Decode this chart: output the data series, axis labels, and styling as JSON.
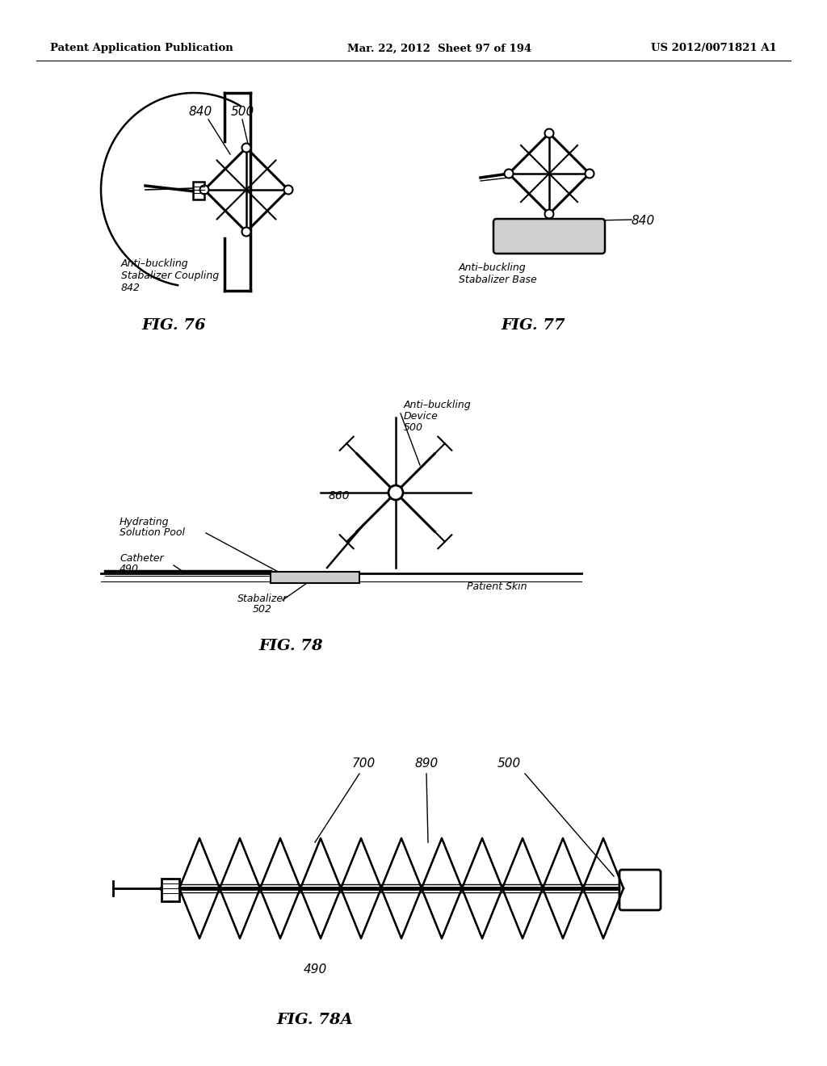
{
  "background_color": "#ffffff",
  "header_left": "Patent Application Publication",
  "header_mid": "Mar. 22, 2012  Sheet 97 of 194",
  "header_right": "US 2012/0071821 A1",
  "fig76_label": "FIG. 76",
  "fig77_label": "FIG. 77",
  "fig78_label": "FIG. 78",
  "fig78a_label": "FIG. 78A",
  "lc": "#000000",
  "tc": "#000000"
}
